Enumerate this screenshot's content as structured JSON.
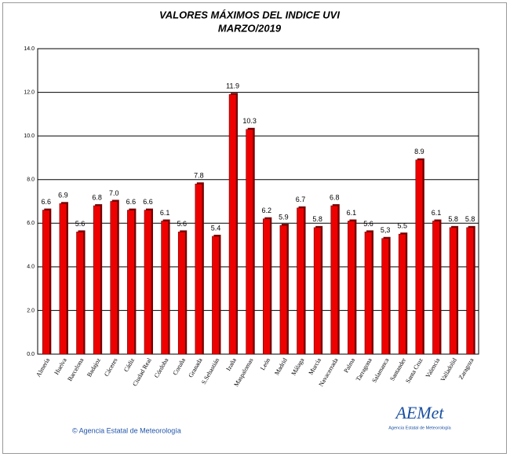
{
  "chart_data": {
    "type": "bar",
    "title": "VALORES MÁXIMOS DEL INDICE UVI",
    "subtitle": "MARZO/2019",
    "categories": [
      "Almería",
      "Huelva",
      "Barcelona",
      "Badajoz",
      "Cáceres",
      "Cádiz",
      "Ciudad Real",
      "Córdoba",
      "Coruña",
      "Granada",
      "S.Sebastián",
      "Izaña",
      "Maspalomas",
      "León",
      "Madrid",
      "Málaga",
      "Murcia",
      "Navacerrada",
      "Palma",
      "Tarragona",
      "Salamanca",
      "Santander",
      "Santa Cruz",
      "Valencia",
      "Valladolid",
      "Zaragoza"
    ],
    "values": [
      6.6,
      6.9,
      5.6,
      6.8,
      7.0,
      6.6,
      6.6,
      6.1,
      5.6,
      7.8,
      5.4,
      11.9,
      10.3,
      6.2,
      5.9,
      6.7,
      5.8,
      6.8,
      6.1,
      5.6,
      5.3,
      5.5,
      8.9,
      6.1,
      5.8,
      5.8
    ],
    "value_labels": [
      "6.6",
      "6.9",
      "5.6",
      "6.8",
      "7.0",
      "6.6",
      "6.6",
      "6.1",
      "5.6",
      "7.8",
      "5.4",
      "11.9",
      "10.3",
      "6.2",
      "5.9",
      "6.7",
      "5.8",
      "6.8",
      "6.1",
      "5.6",
      "5,3",
      "5.5",
      "8.9",
      "6.1",
      "5.8",
      "5.8"
    ],
    "color": "#ee0000",
    "ylim": [
      0,
      14
    ],
    "yticks": [
      {
        "value": 0,
        "label": "0.0"
      },
      {
        "value": 2,
        "label": "2.0"
      },
      {
        "value": 4,
        "label": "4.0"
      },
      {
        "value": 6,
        "label": "6.0"
      },
      {
        "value": 8,
        "label": "8.0"
      },
      {
        "value": 10,
        "label": "10.0"
      },
      {
        "value": 12,
        "label": "12.0"
      },
      {
        "value": 14,
        "label": "14.0"
      }
    ],
    "grid": true,
    "copyright": "© Agencia Estatal de Meteorología",
    "logo_text": "AEMet",
    "logo_subtext": "Agencia Estatal de Meteorología"
  }
}
